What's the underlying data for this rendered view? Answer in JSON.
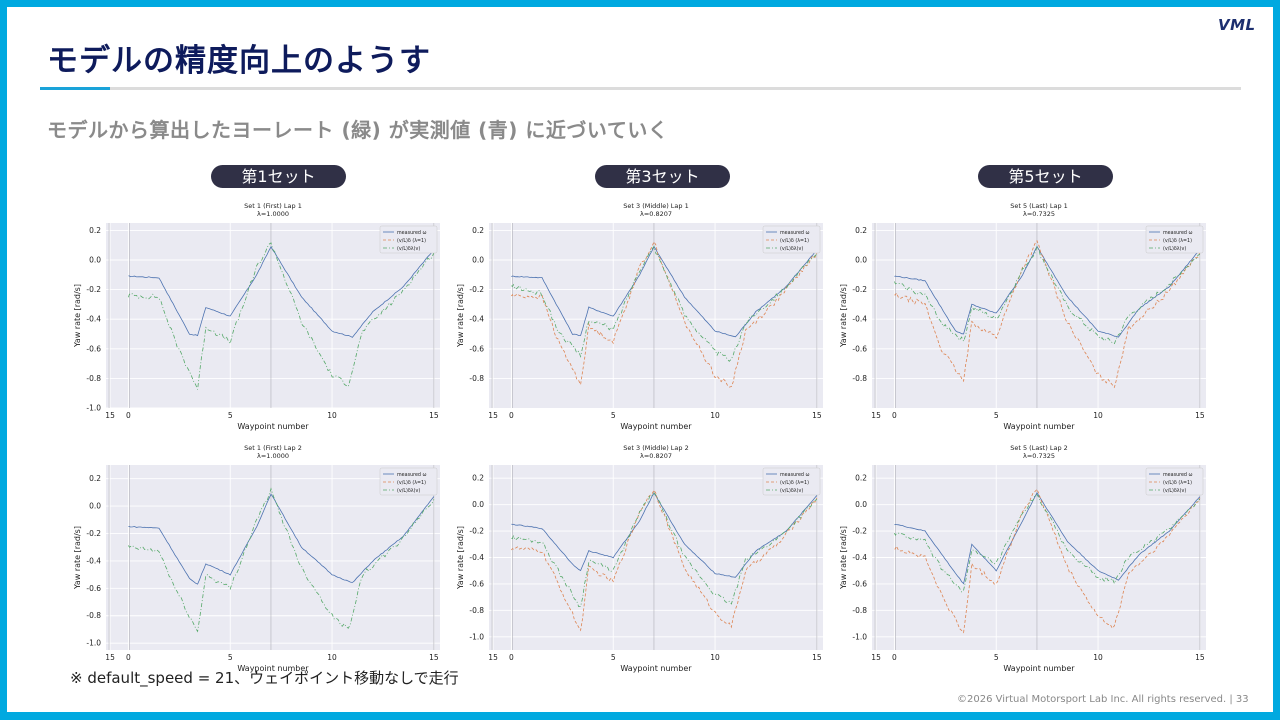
{
  "logo": "VML",
  "title": "モデルの精度向上のようす",
  "subtitle": "モデルから算出したヨーレート (緑) が実測値 (青) に近づいていく",
  "headers": [
    "第1セット",
    "第3セット",
    "第5セット"
  ],
  "note": "※ default_speed = 21、ウェイポイント移動なしで走行",
  "footer": "©2026 Virtual Motorsport Lab Inc. All rights reserved.  |  33",
  "colors": {
    "accent": "#00a9e0",
    "title": "#0e1b5c",
    "measured": "#4c72b0",
    "model1": "#dd8452",
    "model2": "#55a868",
    "plot_bg": "#eaeaf2"
  },
  "chart_data": [
    {
      "type": "line",
      "title": "Set 1 (First) Lap 1",
      "subtitle": "λ=1.0000",
      "xlabel": "Waypoint number",
      "ylabel": "Yaw rate [rad/s]",
      "xticks": [
        "15",
        "0",
        "5",
        "10",
        "15"
      ],
      "yticks": [
        0.2,
        0.0,
        -0.2,
        -0.4,
        -0.6,
        -0.8,
        -1.0
      ],
      "ylim": [
        -1.0,
        0.25
      ],
      "legend": [
        "measured ω",
        "(v/L)δ (λ=1)",
        "(v/L)δλ(v)"
      ],
      "series": [
        {
          "name": "measured ω",
          "x": [
            0,
            0.1,
            1.5,
            3.0,
            3.4,
            3.8,
            5.0,
            6.3,
            7.0,
            8.5,
            10.0,
            11.0,
            12.0,
            13.5,
            15.0
          ],
          "y": [
            -0.11,
            -0.11,
            -0.12,
            -0.5,
            -0.51,
            -0.32,
            -0.38,
            -0.1,
            0.09,
            -0.25,
            -0.48,
            -0.52,
            -0.35,
            -0.18,
            0.07
          ]
        },
        {
          "name": "(v/L)δλ(v)",
          "x": [
            0,
            0.1,
            1.5,
            2.3,
            3.4,
            3.8,
            5.0,
            6.3,
            7.0,
            8.5,
            10.0,
            10.8,
            11.5,
            13.2,
            15.0
          ],
          "y": [
            -0.24,
            -0.24,
            -0.25,
            -0.55,
            -0.87,
            -0.45,
            -0.55,
            -0.05,
            0.12,
            -0.42,
            -0.78,
            -0.84,
            -0.48,
            -0.25,
            0.05
          ]
        }
      ]
    },
    {
      "type": "line",
      "title": "Set 3 (Middle) Lap 1",
      "subtitle": "λ=0.8207",
      "xlabel": "Waypoint number",
      "ylabel": "Yaw rate [rad/s]",
      "xticks": [
        "15",
        "0",
        "5",
        "10",
        "15"
      ],
      "yticks": [
        0.2,
        0.0,
        -0.2,
        -0.4,
        -0.6,
        -0.8
      ],
      "ylim": [
        -1.0,
        0.25
      ],
      "legend": [
        "measured ω",
        "(v/L)δ (λ=1)",
        "(v/L)δλ(v)"
      ],
      "series": [
        {
          "name": "measured ω",
          "x": [
            0,
            0.1,
            1.5,
            3.0,
            3.4,
            3.8,
            5.0,
            6.3,
            7.0,
            8.5,
            10.0,
            11.0,
            12.0,
            13.5,
            15.0
          ],
          "y": [
            -0.11,
            -0.11,
            -0.12,
            -0.5,
            -0.51,
            -0.32,
            -0.38,
            -0.1,
            0.09,
            -0.25,
            -0.48,
            -0.52,
            -0.35,
            -0.18,
            0.07
          ]
        },
        {
          "name": "(v/L)δ (λ=1)",
          "x": [
            0,
            0.1,
            1.5,
            2.3,
            3.4,
            3.8,
            5.0,
            6.3,
            7.0,
            8.5,
            10.0,
            10.8,
            11.5,
            13.2,
            15.0
          ],
          "y": [
            -0.24,
            -0.24,
            -0.25,
            -0.55,
            -0.84,
            -0.45,
            -0.55,
            -0.05,
            0.12,
            -0.42,
            -0.78,
            -0.86,
            -0.48,
            -0.25,
            0.05
          ]
        },
        {
          "name": "(v/L)δλ(v)",
          "x": [
            0,
            0.1,
            1.5,
            2.3,
            3.4,
            3.8,
            5.0,
            6.3,
            7.0,
            8.5,
            10.0,
            10.8,
            11.5,
            13.2,
            15.0
          ],
          "y": [
            -0.18,
            -0.18,
            -0.23,
            -0.48,
            -0.65,
            -0.4,
            -0.47,
            -0.06,
            0.09,
            -0.37,
            -0.62,
            -0.68,
            -0.42,
            -0.22,
            0.04
          ]
        }
      ]
    },
    {
      "type": "line",
      "title": "Set 5 (Last) Lap 1",
      "subtitle": "λ=0.7325",
      "xlabel": "Waypoint number",
      "ylabel": "Yaw rate [rad/s]",
      "xticks": [
        "15",
        "0",
        "5",
        "10",
        "15"
      ],
      "yticks": [
        0.2,
        0.0,
        -0.2,
        -0.4,
        -0.6,
        -0.8
      ],
      "ylim": [
        -1.0,
        0.25
      ],
      "legend": [
        "measured ω",
        "(v/L)δ (λ=1)",
        "(v/L)δλ(v)"
      ],
      "series": [
        {
          "name": "measured ω",
          "x": [
            0,
            0.1,
            1.5,
            3.0,
            3.4,
            3.8,
            5.0,
            6.3,
            7.0,
            8.5,
            10.0,
            11.0,
            12.0,
            13.5,
            15.0
          ],
          "y": [
            -0.11,
            -0.11,
            -0.14,
            -0.48,
            -0.5,
            -0.3,
            -0.36,
            -0.1,
            0.09,
            -0.25,
            -0.48,
            -0.52,
            -0.33,
            -0.18,
            0.07
          ]
        },
        {
          "name": "(v/L)δ (λ=1)",
          "x": [
            0,
            0.1,
            1.5,
            2.3,
            3.4,
            3.8,
            5.0,
            6.3,
            7.0,
            8.5,
            10.0,
            10.8,
            11.5,
            13.2,
            15.0
          ],
          "y": [
            -0.24,
            -0.24,
            -0.3,
            -0.6,
            -0.82,
            -0.42,
            -0.52,
            -0.05,
            0.12,
            -0.42,
            -0.78,
            -0.85,
            -0.46,
            -0.25,
            0.05
          ]
        },
        {
          "name": "(v/L)δλ(v)",
          "x": [
            0,
            0.1,
            1.5,
            2.3,
            3.4,
            3.8,
            5.0,
            6.3,
            7.0,
            8.5,
            10.0,
            10.8,
            11.5,
            13.2,
            15.0
          ],
          "y": [
            -0.16,
            -0.16,
            -0.24,
            -0.42,
            -0.55,
            -0.32,
            -0.4,
            -0.07,
            0.08,
            -0.32,
            -0.52,
            -0.56,
            -0.38,
            -0.2,
            0.04
          ]
        }
      ]
    },
    {
      "type": "line",
      "title": "Set 1 (First) Lap 2",
      "subtitle": "λ=1.0000",
      "xlabel": "Waypoint number",
      "ylabel": "Yaw rate [rad/s]",
      "xticks": [
        "15",
        "0",
        "5",
        "10",
        "15"
      ],
      "yticks": [
        0.2,
        0.0,
        -0.2,
        -0.4,
        -0.6,
        -0.8,
        -1.0
      ],
      "ylim": [
        -1.05,
        0.3
      ],
      "legend": [
        "measured ω",
        "(v/L)δ (λ=1)",
        "(v/L)δλ(v)"
      ],
      "series": [
        {
          "name": "measured ω",
          "x": [
            0,
            0.1,
            1.5,
            3.0,
            3.4,
            3.8,
            5.0,
            6.3,
            7.0,
            8.5,
            10.0,
            11.0,
            12.0,
            13.5,
            15.0
          ],
          "y": [
            -0.15,
            -0.15,
            -0.16,
            -0.53,
            -0.57,
            -0.42,
            -0.5,
            -0.15,
            0.09,
            -0.3,
            -0.5,
            -0.56,
            -0.4,
            -0.22,
            0.07
          ]
        },
        {
          "name": "(v/L)δλ(v)",
          "x": [
            0,
            0.1,
            1.5,
            2.3,
            3.4,
            3.8,
            5.0,
            6.3,
            7.0,
            8.5,
            10.0,
            10.8,
            11.5,
            13.2,
            15.0
          ],
          "y": [
            -0.3,
            -0.3,
            -0.33,
            -0.6,
            -0.92,
            -0.5,
            -0.6,
            -0.1,
            0.11,
            -0.45,
            -0.8,
            -0.9,
            -0.5,
            -0.28,
            0.05
          ]
        }
      ]
    },
    {
      "type": "line",
      "title": "Set 3 (Middle) Lap 2",
      "subtitle": "λ=0.8207",
      "xlabel": "Waypoint number",
      "ylabel": "Yaw rate [rad/s]",
      "xticks": [
        "15",
        "0",
        "5",
        "10",
        "15"
      ],
      "yticks": [
        0.2,
        0.0,
        -0.2,
        -0.4,
        -0.6,
        -0.8,
        -1.0
      ],
      "ylim": [
        -1.1,
        0.3
      ],
      "legend": [
        "measured ω",
        "(v/L)δ (λ=1)",
        "(v/L)δλ(v)"
      ],
      "series": [
        {
          "name": "measured ω",
          "x": [
            0,
            0.1,
            1.5,
            3.0,
            3.4,
            3.8,
            5.0,
            6.3,
            7.0,
            8.5,
            10.0,
            11.0,
            12.0,
            13.5,
            15.0
          ],
          "y": [
            -0.15,
            -0.15,
            -0.18,
            -0.45,
            -0.5,
            -0.35,
            -0.4,
            -0.12,
            0.09,
            -0.3,
            -0.52,
            -0.55,
            -0.35,
            -0.2,
            0.07
          ]
        },
        {
          "name": "(v/L)δ (λ=1)",
          "x": [
            0,
            0.1,
            1.5,
            2.3,
            3.4,
            3.8,
            5.0,
            6.3,
            7.0,
            8.5,
            10.0,
            10.8,
            11.5,
            13.2,
            15.0
          ],
          "y": [
            -0.33,
            -0.33,
            -0.35,
            -0.6,
            -0.96,
            -0.48,
            -0.58,
            -0.05,
            0.12,
            -0.48,
            -0.82,
            -0.92,
            -0.5,
            -0.28,
            0.05
          ]
        },
        {
          "name": "(v/L)δλ(v)",
          "x": [
            0,
            0.1,
            1.5,
            2.3,
            3.4,
            3.8,
            5.0,
            6.3,
            7.0,
            8.5,
            10.0,
            10.8,
            11.5,
            13.2,
            15.0
          ],
          "y": [
            -0.25,
            -0.25,
            -0.28,
            -0.5,
            -0.78,
            -0.42,
            -0.5,
            -0.06,
            0.1,
            -0.4,
            -0.68,
            -0.75,
            -0.42,
            -0.24,
            0.04
          ]
        }
      ]
    },
    {
      "type": "line",
      "title": "Set 5 (Last) Lap 2",
      "subtitle": "λ=0.7325",
      "xlabel": "Waypoint number",
      "ylabel": "Yaw rate [rad/s]",
      "xticks": [
        "15",
        "0",
        "5",
        "10",
        "15"
      ],
      "yticks": [
        0.2,
        0.0,
        -0.2,
        -0.4,
        -0.6,
        -0.8,
        -1.0
      ],
      "ylim": [
        -1.1,
        0.3
      ],
      "legend": [
        "measured ω",
        "(v/L)δ (λ=1)",
        "(v/L)δλ(v)"
      ],
      "series": [
        {
          "name": "measured ω",
          "x": [
            0,
            0.1,
            1.5,
            3.0,
            3.4,
            3.8,
            5.0,
            6.3,
            7.0,
            8.5,
            10.0,
            11.0,
            12.0,
            13.5,
            15.0
          ],
          "y": [
            -0.15,
            -0.15,
            -0.2,
            -0.52,
            -0.6,
            -0.3,
            -0.5,
            -0.12,
            0.09,
            -0.28,
            -0.5,
            -0.57,
            -0.38,
            -0.2,
            0.06
          ]
        },
        {
          "name": "(v/L)δ (λ=1)",
          "x": [
            0,
            0.1,
            1.5,
            2.3,
            3.4,
            3.8,
            5.0,
            6.3,
            7.0,
            8.5,
            10.0,
            10.8,
            11.5,
            13.2,
            15.0
          ],
          "y": [
            -0.33,
            -0.33,
            -0.4,
            -0.68,
            -0.98,
            -0.45,
            -0.6,
            -0.05,
            0.12,
            -0.48,
            -0.85,
            -0.93,
            -0.52,
            -0.28,
            0.05
          ]
        },
        {
          "name": "(v/L)δλ(v)",
          "x": [
            0,
            0.1,
            1.5,
            2.3,
            3.4,
            3.8,
            5.0,
            6.3,
            7.0,
            8.5,
            10.0,
            10.8,
            11.5,
            13.2,
            15.0
          ],
          "y": [
            -0.22,
            -0.22,
            -0.28,
            -0.48,
            -0.66,
            -0.35,
            -0.45,
            -0.07,
            0.08,
            -0.35,
            -0.55,
            -0.58,
            -0.4,
            -0.22,
            0.04
          ]
        }
      ]
    }
  ]
}
